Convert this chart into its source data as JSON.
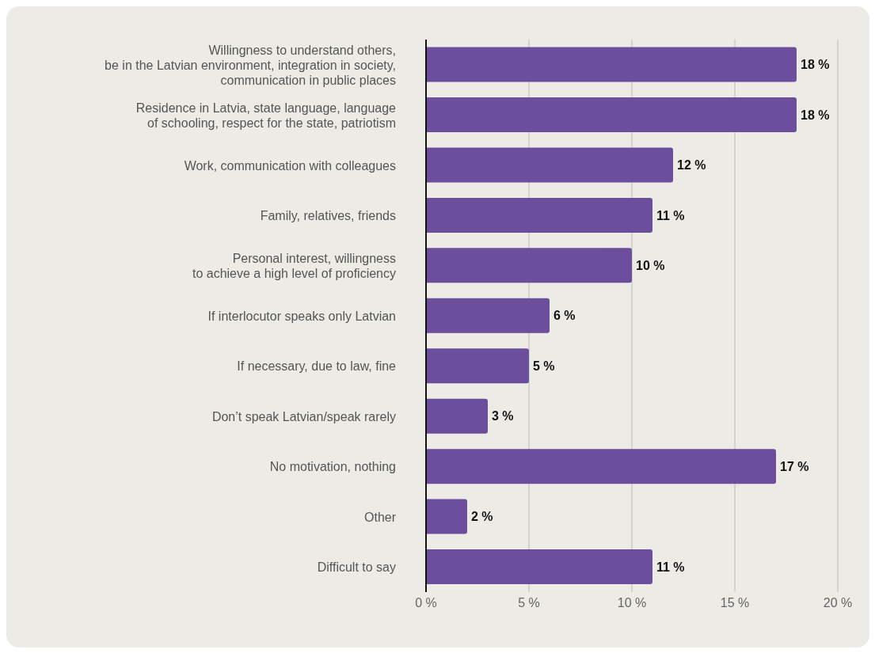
{
  "chart_data": {
    "type": "bar",
    "orientation": "horizontal",
    "categories": [
      "Willingness to understand others,\nbe in the Latvian environment, integration in society,\ncommunication in public places",
      "Residence in Latvia, state language, language\nof schooling, respect for the state, patriotism",
      "Work, communication with colleagues",
      "Family, relatives, friends",
      "Personal interest, willingness\nto achieve a high level of proficiency",
      "If interlocutor speaks only Latvian",
      "If necessary, due to law, fine",
      "Don’t speak Latvian/speak rarely",
      "No motivation, nothing",
      "Other",
      "Difficult to say"
    ],
    "values": [
      18,
      18,
      12,
      11,
      10,
      6,
      5,
      3,
      17,
      2,
      11
    ],
    "value_labels": [
      "18 %",
      "18 %",
      "12 %",
      "11 %",
      "10 %",
      "6 %",
      "5 %",
      "3 %",
      "17 %",
      "2 %",
      "11 %"
    ],
    "color": "#6c4f9c",
    "xlim": [
      0,
      20
    ],
    "xticks": [
      {
        "value": 0,
        "label": "0 %"
      },
      {
        "value": 5,
        "label": "5 %"
      },
      {
        "value": 10,
        "label": "10 %"
      },
      {
        "value": 15,
        "label": "15 %"
      },
      {
        "value": 20,
        "label": "20 %"
      }
    ],
    "grid": "x"
  }
}
